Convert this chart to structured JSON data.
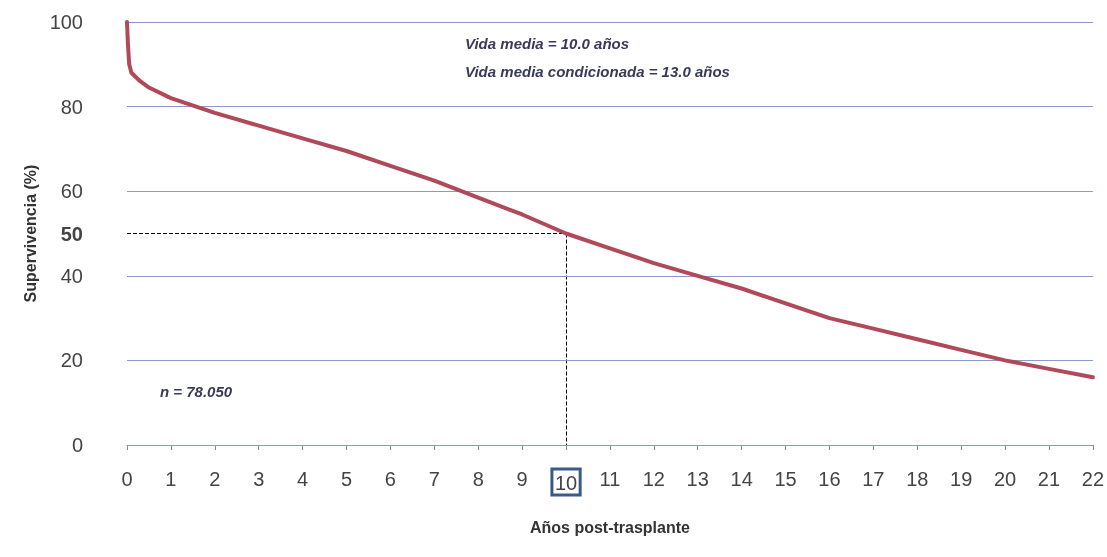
{
  "chart_data": {
    "type": "line",
    "xlabel": "Años post-trasplante",
    "ylabel": "Supervivencia (%)",
    "x": [
      0,
      0.02,
      0.05,
      0.1,
      0.3,
      0.5,
      1,
      2,
      3,
      4,
      5,
      6,
      7,
      8,
      9,
      10,
      11,
      12,
      13,
      14,
      15,
      16,
      17,
      18,
      19,
      20,
      21,
      22
    ],
    "series": [
      {
        "color": "#b04a5a",
        "values": [
          100,
          95,
          90,
          88,
          86,
          84.5,
          82,
          78.5,
          75.5,
          72.5,
          69.5,
          66,
          62.5,
          58.5,
          54.5,
          50,
          46.5,
          43,
          40,
          37,
          33.5,
          30,
          27.5,
          25,
          22.5,
          20,
          18,
          16
        ]
      }
    ],
    "xlim": [
      0,
      22
    ],
    "xticks": [
      0,
      1,
      2,
      3,
      4,
      5,
      6,
      7,
      8,
      9,
      10,
      11,
      12,
      13,
      14,
      15,
      16,
      17,
      18,
      19,
      20,
      21,
      22
    ],
    "ylim": [
      0,
      100
    ],
    "yticks": [
      0,
      20,
      40,
      50,
      60,
      80,
      100
    ],
    "ref_lines": [
      {
        "axis": "y",
        "value": 50,
        "line_style": "dashed"
      },
      {
        "axis": "x",
        "value": 10,
        "line_style": "dashed"
      }
    ],
    "annotations": [
      "Vida media = 10.0 años",
      "Vida media condicionada = 13.0 años",
      "n = 78.050"
    ],
    "grid": "y",
    "marker": "none",
    "line_style": "solid"
  }
}
